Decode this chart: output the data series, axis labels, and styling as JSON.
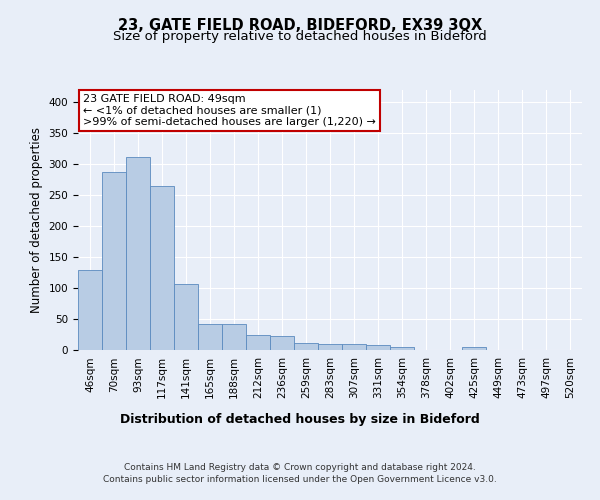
{
  "title1": "23, GATE FIELD ROAD, BIDEFORD, EX39 3QX",
  "title2": "Size of property relative to detached houses in Bideford",
  "xlabel": "Distribution of detached houses by size in Bideford",
  "ylabel": "Number of detached properties",
  "categories": [
    "46sqm",
    "70sqm",
    "93sqm",
    "117sqm",
    "141sqm",
    "165sqm",
    "188sqm",
    "212sqm",
    "236sqm",
    "259sqm",
    "283sqm",
    "307sqm",
    "331sqm",
    "354sqm",
    "378sqm",
    "402sqm",
    "425sqm",
    "449sqm",
    "473sqm",
    "497sqm",
    "520sqm"
  ],
  "values": [
    130,
    288,
    312,
    265,
    106,
    42,
    42,
    25,
    22,
    11,
    10,
    10,
    8,
    5,
    0,
    0,
    5,
    0,
    0,
    0,
    0
  ],
  "bar_color": "#b8cce4",
  "bar_edge_color": "#5a8abf",
  "annotation_lines": [
    "23 GATE FIELD ROAD: 49sqm",
    "← <1% of detached houses are smaller (1)",
    ">99% of semi-detached houses are larger (1,220) →"
  ],
  "annotation_box_facecolor": "#ffffff",
  "annotation_box_edgecolor": "#c00000",
  "ylim": [
    0,
    420
  ],
  "yticks": [
    0,
    50,
    100,
    150,
    200,
    250,
    300,
    350,
    400
  ],
  "background_color": "#e8eef8",
  "plot_bg_color": "#e8eef8",
  "grid_color": "#ffffff",
  "footer_line1": "Contains HM Land Registry data © Crown copyright and database right 2024.",
  "footer_line2": "Contains public sector information licensed under the Open Government Licence v3.0.",
  "title1_fontsize": 10.5,
  "title2_fontsize": 9.5,
  "xlabel_fontsize": 9,
  "ylabel_fontsize": 8.5,
  "tick_fontsize": 7.5,
  "annotation_fontsize": 8,
  "footer_fontsize": 6.5
}
